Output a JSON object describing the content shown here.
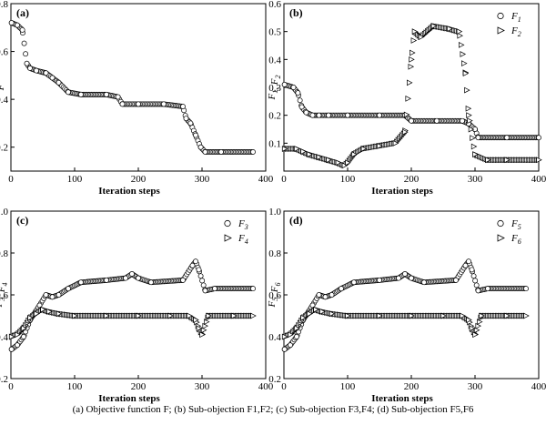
{
  "caption": "(a) Objective function F; (b) Sub-objection F1,F2; (c) Sub-objection F3,F4; (d) Sub-objection F5,F6",
  "chart_data": [
    {
      "type": "scatter",
      "panel": "(a)",
      "xlabel": "Iteration steps",
      "ylabel": "F",
      "xlim": [
        0,
        400
      ],
      "ylim": [
        0.1,
        0.8
      ],
      "xticks": [
        0,
        100,
        200,
        300,
        400
      ],
      "yticks": [
        0.2,
        0.4,
        0.6,
        0.8
      ],
      "series": [
        {
          "marker": "circle",
          "x": [
            1,
            10,
            18,
            25,
            30,
            40,
            55,
            65,
            75,
            90,
            110,
            150,
            168,
            175,
            200,
            240,
            270,
            275,
            282,
            290,
            298,
            305,
            330,
            380
          ],
          "y": [
            0.72,
            0.71,
            0.69,
            0.55,
            0.53,
            0.52,
            0.51,
            0.49,
            0.47,
            0.43,
            0.42,
            0.42,
            0.41,
            0.38,
            0.38,
            0.38,
            0.37,
            0.32,
            0.3,
            0.25,
            0.2,
            0.18,
            0.18,
            0.18
          ]
        }
      ]
    },
    {
      "type": "scatter",
      "panel": "(b)",
      "xlabel": "Iteration steps",
      "ylabel": "F1, F2",
      "xlim": [
        0,
        400
      ],
      "ylim": [
        0,
        0.6
      ],
      "xticks": [
        0,
        100,
        200,
        300,
        400
      ],
      "yticks": [
        0.1,
        0.2,
        0.3,
        0.4,
        0.5,
        0.6
      ],
      "legend": [
        "F1",
        "F2"
      ],
      "series": [
        {
          "name": "F1",
          "marker": "circle",
          "x": [
            1,
            15,
            22,
            28,
            35,
            45,
            55,
            70,
            100,
            150,
            190,
            200,
            240,
            280,
            290,
            300,
            305,
            350,
            400
          ],
          "y": [
            0.31,
            0.3,
            0.28,
            0.23,
            0.21,
            0.2,
            0.2,
            0.2,
            0.2,
            0.2,
            0.2,
            0.18,
            0.18,
            0.18,
            0.17,
            0.15,
            0.12,
            0.12,
            0.12
          ]
        },
        {
          "name": "F2",
          "marker": "triangle",
          "x": [
            1,
            20,
            30,
            40,
            55,
            70,
            85,
            95,
            100,
            110,
            125,
            150,
            175,
            190,
            200,
            205,
            215,
            235,
            260,
            275,
            285,
            290,
            300,
            320,
            350,
            400
          ],
          "y": [
            0.08,
            0.08,
            0.07,
            0.06,
            0.05,
            0.04,
            0.03,
            0.02,
            0.03,
            0.06,
            0.08,
            0.09,
            0.1,
            0.14,
            0.4,
            0.5,
            0.48,
            0.52,
            0.51,
            0.5,
            0.35,
            0.2,
            0.06,
            0.04,
            0.04,
            0.04
          ]
        }
      ]
    },
    {
      "type": "scatter",
      "panel": "(c)",
      "xlabel": "Iteration steps",
      "ylabel": "F3, F4",
      "xlim": [
        0,
        400
      ],
      "ylim": [
        0.2,
        1.0
      ],
      "xticks": [
        0,
        100,
        200,
        300,
        400
      ],
      "yticks": [
        0.2,
        0.4,
        0.6,
        0.8,
        1.0
      ],
      "legend": [
        "F3",
        "F4"
      ],
      "series": [
        {
          "name": "F3",
          "marker": "circle",
          "x": [
            1,
            10,
            20,
            30,
            45,
            55,
            65,
            75,
            90,
            110,
            150,
            180,
            190,
            200,
            220,
            270,
            285,
            290,
            295,
            305,
            320,
            380
          ],
          "y": [
            0.34,
            0.36,
            0.4,
            0.48,
            0.55,
            0.6,
            0.59,
            0.6,
            0.63,
            0.66,
            0.67,
            0.68,
            0.7,
            0.68,
            0.66,
            0.67,
            0.74,
            0.76,
            0.72,
            0.62,
            0.63,
            0.63
          ]
        },
        {
          "name": "F4",
          "marker": "triangle",
          "x": [
            1,
            10,
            20,
            30,
            40,
            50,
            60,
            75,
            100,
            150,
            200,
            250,
            280,
            290,
            295,
            300,
            310,
            350,
            380
          ],
          "y": [
            0.4,
            0.41,
            0.44,
            0.49,
            0.51,
            0.53,
            0.52,
            0.51,
            0.5,
            0.5,
            0.5,
            0.5,
            0.5,
            0.48,
            0.44,
            0.41,
            0.5,
            0.5,
            0.5
          ]
        }
      ]
    },
    {
      "type": "scatter",
      "panel": "(d)",
      "xlabel": "Iteration steps",
      "ylabel": "F5, F6",
      "xlim": [
        0,
        400
      ],
      "ylim": [
        0.2,
        1.0
      ],
      "xticks": [
        0,
        100,
        200,
        300,
        400
      ],
      "yticks": [
        0.2,
        0.4,
        0.6,
        0.8,
        1.0
      ],
      "legend": [
        "F5",
        "F6"
      ],
      "series": [
        {
          "name": "F5",
          "marker": "circle",
          "x": [
            1,
            10,
            20,
            30,
            45,
            55,
            65,
            75,
            90,
            110,
            150,
            180,
            190,
            200,
            220,
            270,
            285,
            290,
            295,
            305,
            320,
            380
          ],
          "y": [
            0.34,
            0.36,
            0.4,
            0.48,
            0.55,
            0.6,
            0.59,
            0.6,
            0.63,
            0.66,
            0.67,
            0.68,
            0.7,
            0.68,
            0.66,
            0.67,
            0.74,
            0.76,
            0.72,
            0.62,
            0.63,
            0.63
          ]
        },
        {
          "name": "F6",
          "marker": "triangle",
          "x": [
            1,
            10,
            20,
            30,
            40,
            50,
            60,
            75,
            100,
            150,
            200,
            250,
            280,
            290,
            295,
            300,
            310,
            350,
            380
          ],
          "y": [
            0.4,
            0.41,
            0.44,
            0.49,
            0.51,
            0.53,
            0.52,
            0.51,
            0.5,
            0.5,
            0.5,
            0.5,
            0.5,
            0.48,
            0.44,
            0.41,
            0.5,
            0.5,
            0.5
          ]
        }
      ]
    }
  ]
}
